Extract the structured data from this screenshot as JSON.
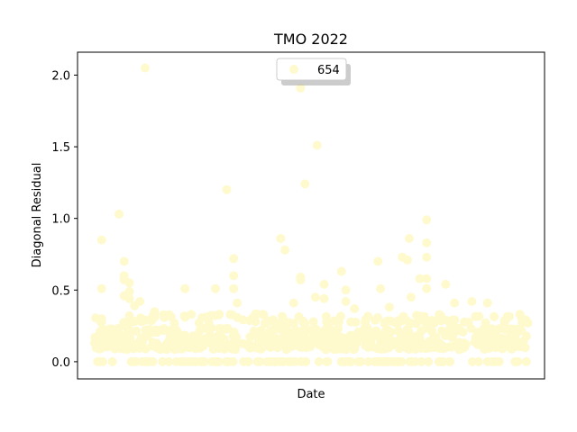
{
  "chart_data": {
    "type": "scatter",
    "title": "TMO 2022",
    "xlabel": "Date",
    "ylabel": "Diagonal Residual",
    "ylim": [
      -0.12,
      2.16
    ],
    "yticks": [
      "0.0",
      "0.5",
      "1.0",
      "1.5",
      "2.0"
    ],
    "ytick_values": [
      0.0,
      0.5,
      1.0,
      1.5,
      2.0
    ],
    "xticks": [],
    "grid": false,
    "legend_position": "top-center",
    "series": [
      {
        "name": "654",
        "color": "#fffacd",
        "outliers": [
          {
            "x": 0.018,
            "y": 0.85
          },
          {
            "x": 0.018,
            "y": 0.51
          },
          {
            "x": 0.018,
            "y": 0.3
          },
          {
            "x": 0.018,
            "y": 0.28
          },
          {
            "x": 0.018,
            "y": 0.2
          },
          {
            "x": 0.058,
            "y": 1.03
          },
          {
            "x": 0.07,
            "y": 0.7
          },
          {
            "x": 0.07,
            "y": 0.6
          },
          {
            "x": 0.07,
            "y": 0.57
          },
          {
            "x": 0.07,
            "y": 0.46
          },
          {
            "x": 0.082,
            "y": 0.55
          },
          {
            "x": 0.082,
            "y": 0.49
          },
          {
            "x": 0.082,
            "y": 0.44
          },
          {
            "x": 0.082,
            "y": 0.32
          },
          {
            "x": 0.094,
            "y": 0.39
          },
          {
            "x": 0.106,
            "y": 0.42
          },
          {
            "x": 0.118,
            "y": 2.05
          },
          {
            "x": 0.14,
            "y": 0.35
          },
          {
            "x": 0.14,
            "y": 0.31
          },
          {
            "x": 0.21,
            "y": 0.51
          },
          {
            "x": 0.21,
            "y": 0.31
          },
          {
            "x": 0.28,
            "y": 0.51
          },
          {
            "x": 0.306,
            "y": 1.2
          },
          {
            "x": 0.322,
            "y": 0.72
          },
          {
            "x": 0.322,
            "y": 0.6
          },
          {
            "x": 0.322,
            "y": 0.51
          },
          {
            "x": 0.33,
            "y": 0.41
          },
          {
            "x": 0.43,
            "y": 0.86
          },
          {
            "x": 0.44,
            "y": 0.78
          },
          {
            "x": 0.46,
            "y": 0.41
          },
          {
            "x": 0.476,
            "y": 1.91
          },
          {
            "x": 0.476,
            "y": 0.59
          },
          {
            "x": 0.476,
            "y": 0.57
          },
          {
            "x": 0.486,
            "y": 1.24
          },
          {
            "x": 0.51,
            "y": 0.45
          },
          {
            "x": 0.514,
            "y": 1.51
          },
          {
            "x": 0.53,
            "y": 0.54
          },
          {
            "x": 0.53,
            "y": 0.44
          },
          {
            "x": 0.57,
            "y": 0.63
          },
          {
            "x": 0.58,
            "y": 0.5
          },
          {
            "x": 0.58,
            "y": 0.42
          },
          {
            "x": 0.6,
            "y": 0.37
          },
          {
            "x": 0.654,
            "y": 0.7
          },
          {
            "x": 0.66,
            "y": 0.51
          },
          {
            "x": 0.68,
            "y": 0.38
          },
          {
            "x": 0.71,
            "y": 0.73
          },
          {
            "x": 0.722,
            "y": 0.71
          },
          {
            "x": 0.726,
            "y": 0.86
          },
          {
            "x": 0.73,
            "y": 0.45
          },
          {
            "x": 0.75,
            "y": 0.58
          },
          {
            "x": 0.766,
            "y": 0.99
          },
          {
            "x": 0.766,
            "y": 0.83
          },
          {
            "x": 0.766,
            "y": 0.73
          },
          {
            "x": 0.766,
            "y": 0.58
          },
          {
            "x": 0.766,
            "y": 0.51
          },
          {
            "x": 0.81,
            "y": 0.54
          },
          {
            "x": 0.83,
            "y": 0.41
          },
          {
            "x": 0.87,
            "y": 0.42
          },
          {
            "x": 0.906,
            "y": 0.41
          },
          {
            "x": 0.95,
            "y": 0.3
          }
        ],
        "bulk_bands": [
          {
            "y": 0.0,
            "count": 110
          },
          {
            "y": 0.1,
            "count": 160
          },
          {
            "y": 0.13,
            "count": 160
          },
          {
            "y": 0.17,
            "count": 120
          },
          {
            "y": 0.22,
            "count": 110
          },
          {
            "y": 0.28,
            "count": 70
          },
          {
            "y": 0.32,
            "count": 45
          }
        ]
      }
    ],
    "legend": [
      {
        "label": "654",
        "color": "#fffacd"
      }
    ]
  }
}
